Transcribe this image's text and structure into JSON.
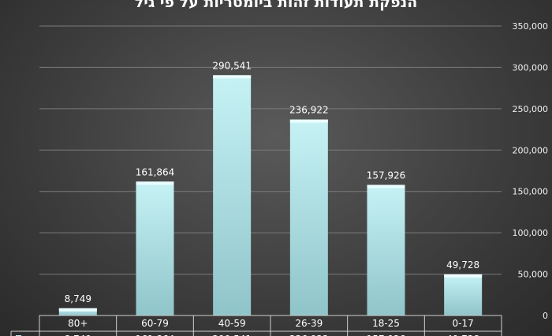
{
  "chart_data": {
    "type": "bar",
    "title": "הנפקת תעודות זהות ביומטריות על פי גיל",
    "categories": [
      "80+",
      "60-79",
      "40-59",
      "26-39",
      "18-25",
      "0-17"
    ],
    "values": [
      8749,
      161864,
      290541,
      236922,
      157926,
      49728
    ],
    "value_labels": [
      "8,749",
      "161,864",
      "290,541",
      "236,922",
      "157,926",
      "49,728"
    ],
    "yticks": [
      "0",
      "50,000",
      "100,000",
      "150,000",
      "200,000",
      "250,000",
      "300,000",
      "350,000"
    ],
    "ylim": [
      0,
      350000
    ],
    "y_axis_side": "right",
    "grid": true,
    "data_table": true,
    "bar_color": "#b6ebef"
  }
}
